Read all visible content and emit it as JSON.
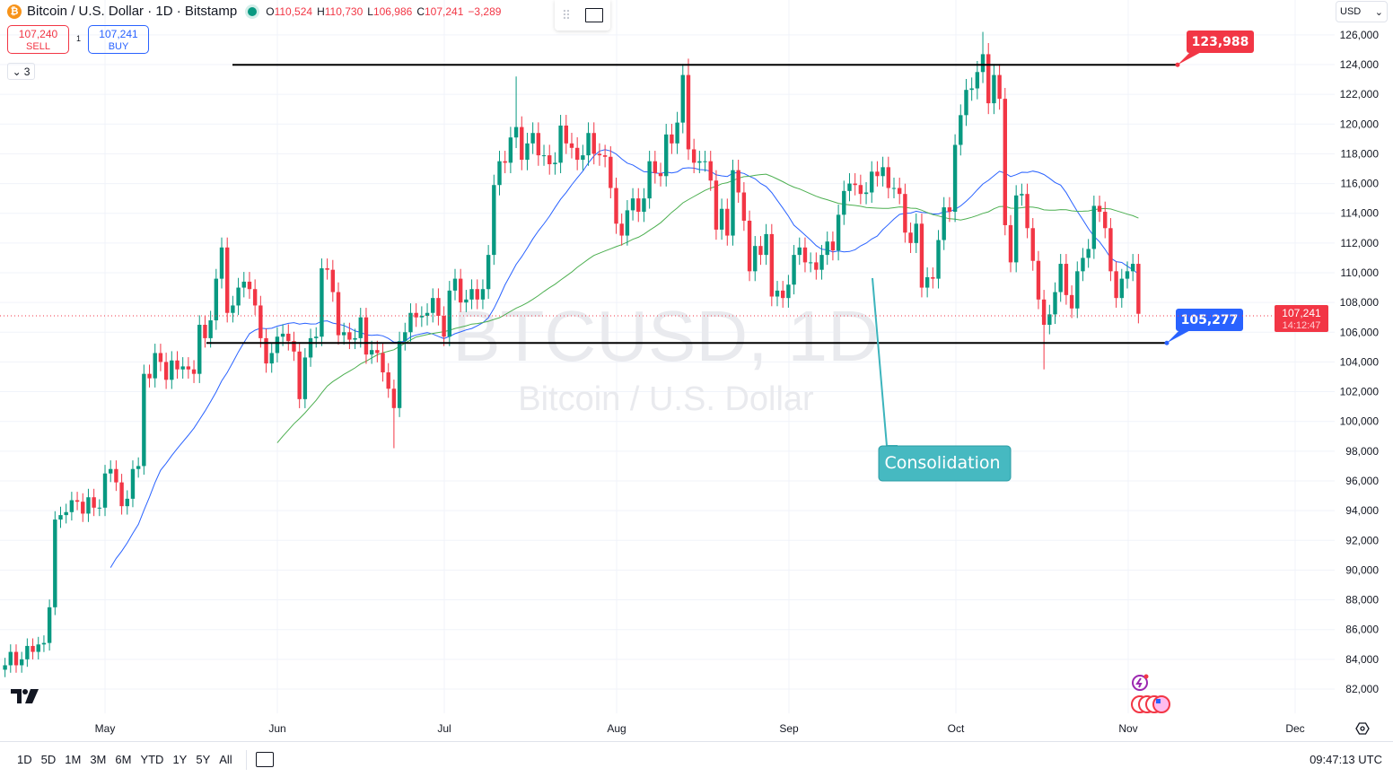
{
  "header": {
    "symbol_title": "Bitcoin / U.S. Dollar · 1D · Bitstamp",
    "coin_icon": "bitcoin-icon",
    "ohlc": {
      "o_label": "O",
      "o": "110,524",
      "h_label": "H",
      "h": "110,730",
      "l_label": "L",
      "l": "106,986",
      "c_label": "C",
      "c": "107,241",
      "change": "−3,289"
    }
  },
  "trade": {
    "sell_price": "107,240",
    "sell_label": "SELL",
    "spread": "1",
    "buy_price": "107,241",
    "buy_label": "BUY"
  },
  "indicators_collapse": {
    "count": "3"
  },
  "currency": "USD",
  "watermark": {
    "ticker": "BTCUSD, 1D",
    "name": "Bitcoin / U.S. Dollar"
  },
  "colors": {
    "up": "#089981",
    "down": "#f23645",
    "ma_fast": "#2962ff",
    "ma_slow": "#4caf50",
    "callout": "#3cb4bc",
    "level_top": "#f23645",
    "level_bottom": "#2962ff"
  },
  "chart_data": {
    "type": "candlestick",
    "ylim": [
      81000,
      127000
    ],
    "y_ticks": [
      "82,000",
      "84,000",
      "86,000",
      "88,000",
      "90,000",
      "92,000",
      "94,000",
      "96,000",
      "98,000",
      "100,000",
      "102,000",
      "104,000",
      "106,000",
      "108,000",
      "110,000",
      "112,000",
      "114,000",
      "116,000",
      "118,000",
      "120,000",
      "122,000",
      "124,000",
      "126,000"
    ],
    "x_ticks": [
      "May",
      "Jun",
      "Jul",
      "Aug",
      "Sep",
      "Oct",
      "Nov",
      "Dec"
    ],
    "first_open": 83.3,
    "close_unit": "thousand USD",
    "candles": [
      {
        "month": "2025-04",
        "from_day": 13,
        "close": [
          83.6,
          84.5,
          83.6,
          84,
          84.9,
          84.5,
          85,
          85.1,
          87.5,
          93.4,
          93.7,
          93.9,
          94.7,
          94.6,
          93.8,
          94.9,
          94.2,
          94.2
        ]
      },
      {
        "month": "2025-05",
        "from_day": 1,
        "close": [
          96.5,
          96.8,
          95.9,
          94.3,
          94.8,
          96.8,
          97,
          103.2,
          102.9,
          104.6,
          104,
          102.8,
          104.1,
          103.5,
          103.7,
          103.5,
          103.2,
          106.5,
          105.6,
          106.8,
          109.6,
          111.7,
          107.3,
          107.8,
          109,
          109.4,
          108.9,
          107.8,
          105.6,
          103.9,
          104.6
        ]
      },
      {
        "month": "2025-06",
        "from_day": 1,
        "close": [
          105.7,
          105.9,
          105.4,
          104.7,
          101.5,
          104.3,
          105.6,
          105.7,
          110.3,
          110.2,
          108.7,
          105.8,
          106,
          105.5,
          105.6,
          107,
          104.5,
          104.8,
          104.6,
          103.3,
          102.2,
          100.9,
          105.4,
          106,
          107.3,
          107,
          107.1,
          107.3,
          108.3,
          107.1
        ]
      },
      {
        "month": "2025-07",
        "from_day": 1,
        "close": [
          105.7,
          108.8,
          109.6,
          108,
          108.2,
          108.9,
          108.2,
          108.9,
          111.2,
          115.9,
          117.5,
          117.4,
          119.1,
          119.8,
          117.6,
          118.7,
          119.4,
          117.9,
          117.9,
          117.3,
          117.4,
          119.9,
          118.7,
          118.4,
          117.6,
          117.9,
          119.4,
          118,
          117.9,
          117.8,
          115.7
        ]
      },
      {
        "month": "2025-08",
        "from_day": 1,
        "close": [
          113.3,
          112.5,
          114.2,
          115,
          114.1,
          115,
          117.5,
          116.7,
          116.5,
          119.3,
          118.7,
          120.1,
          123.3,
          118.3,
          117.4,
          117.5,
          117.5,
          116.2,
          112.9,
          114.3,
          112.5,
          116.9,
          115.4,
          113.5,
          110.1,
          111.8,
          111.2,
          112.6,
          108.4,
          108.8,
          108.3
        ]
      },
      {
        "month": "2025-09",
        "from_day": 1,
        "close": [
          109.2,
          111.2,
          111.7,
          110.7,
          110.7,
          110.2,
          111.2,
          112.1,
          111.5,
          113.9,
          115.5,
          116,
          115.9,
          115.3,
          115.4,
          116.8,
          116.5,
          117.1,
          115.7,
          115.7,
          115.3,
          112.7,
          112,
          113.3,
          109,
          109.7,
          109.6,
          112.2,
          114.4,
          114.1
        ]
      },
      {
        "month": "2025-10",
        "from_day": 1,
        "close": [
          118.6,
          120.6,
          122.3,
          122.4,
          123.5,
          124.7,
          121.4,
          123.3,
          121.7,
          113.2,
          110.7,
          115.2,
          115.3,
          113,
          110.8,
          108.2,
          106.5,
          107.2,
          108.7,
          110.6,
          108.5,
          107.6,
          110.1,
          111,
          111.6,
          114.5,
          114.1,
          113,
          110.1,
          108.3,
          109.6
        ]
      },
      {
        "month": "2025-11",
        "from_day": 1,
        "close": [
          110.1,
          110.6,
          107.241
        ]
      }
    ],
    "notable_wicks": [
      {
        "date": "2025-07-14",
        "high": 123.2
      },
      {
        "date": "2025-08-14",
        "high": 124.4
      },
      {
        "date": "2025-10-06",
        "high": 126.2
      },
      {
        "date": "2025-06-22",
        "low": 98.2
      },
      {
        "date": "2025-10-17",
        "low": 103.5
      }
    ],
    "moving_averages": [
      {
        "type": "SMA",
        "period": 20,
        "color": "#2962ff"
      },
      {
        "type": "SMA",
        "period": 50,
        "color": "#4caf50"
      }
    ],
    "horizontal_levels": [
      {
        "value": 123988,
        "label": "123,988"
      },
      {
        "value": 105277,
        "label": "105,277"
      }
    ],
    "annotation": {
      "text": "Consolidation"
    },
    "last_price": {
      "value": "107,241",
      "countdown": "14:12:47"
    }
  },
  "bottom_bar": {
    "ranges": [
      "1D",
      "5D",
      "1M",
      "3M",
      "6M",
      "YTD",
      "1Y",
      "5Y",
      "All"
    ],
    "clock": "09:47:13 UTC"
  }
}
